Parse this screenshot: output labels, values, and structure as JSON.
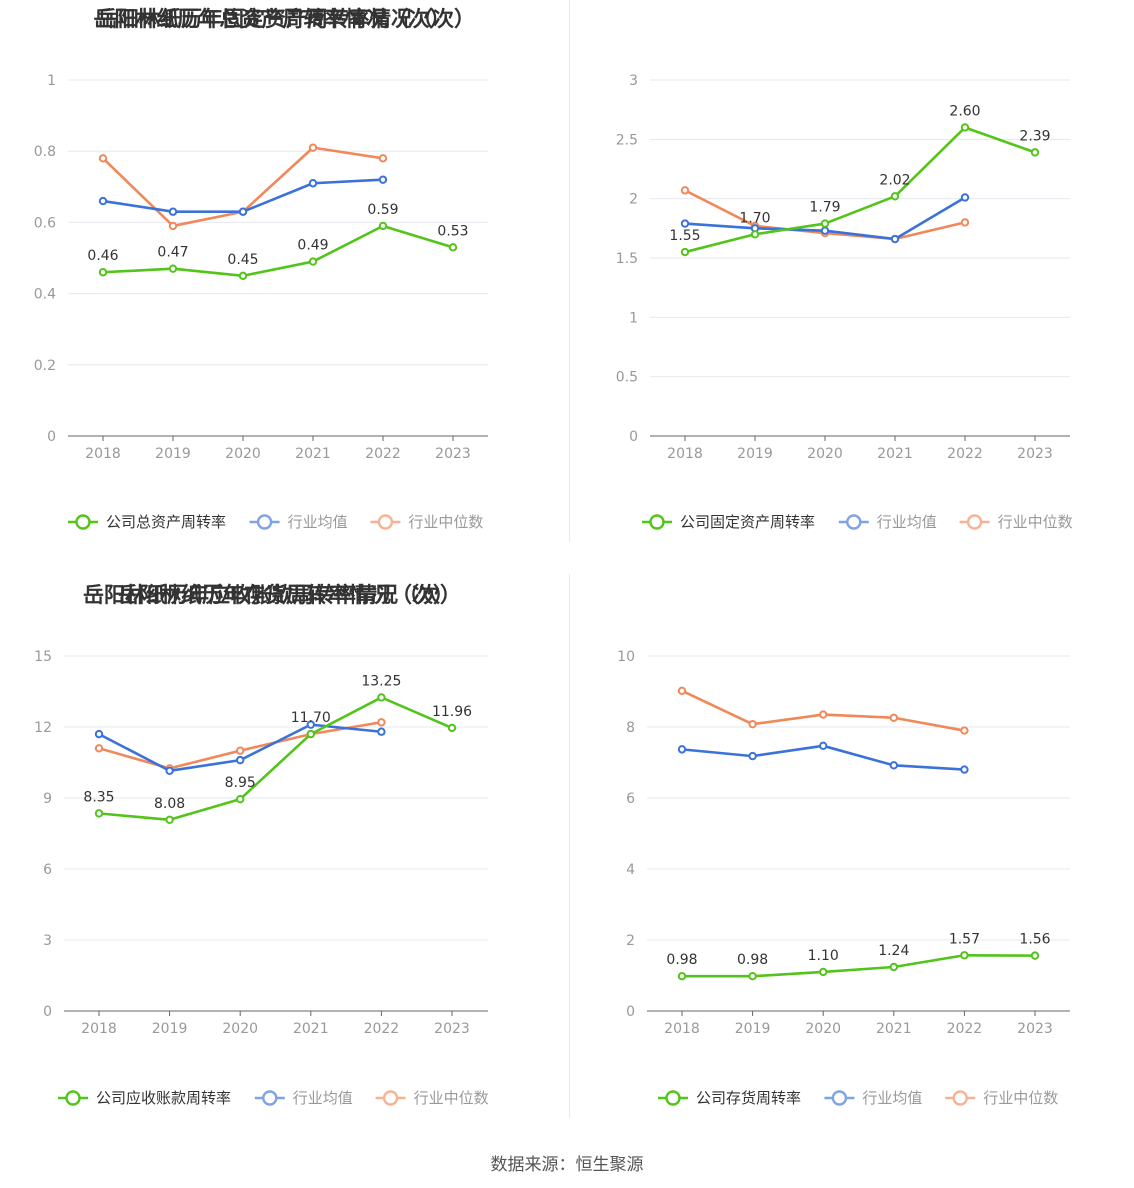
{
  "source_text": "数据来源：恒生聚源",
  "colors": {
    "company": "#52c41a",
    "avg": "#3b72d9",
    "median": "#f0885a"
  },
  "chart_data": [
    {
      "type": "line",
      "title": "岳阳林纸历年总资产周转率情况（次）",
      "categories": [
        "2018",
        "2019",
        "2020",
        "2021",
        "2022",
        "2023"
      ],
      "ylim": [
        0,
        1
      ],
      "yticks": [
        0,
        0.2,
        0.4,
        0.6,
        0.8,
        1
      ],
      "ytick_labels": [
        "0",
        "0.2",
        "0.4",
        "0.6",
        "0.8",
        "1"
      ],
      "series": [
        {
          "name": "公司总资产周转率",
          "key": "company",
          "values": [
            0.46,
            0.47,
            0.45,
            0.49,
            0.59,
            0.53
          ],
          "labels": [
            "0.46",
            "0.47",
            "0.45",
            "0.49",
            "0.59",
            "0.53"
          ]
        },
        {
          "name": "行业均值",
          "key": "avg",
          "values": [
            0.66,
            0.63,
            0.63,
            0.71,
            0.72,
            null
          ]
        },
        {
          "name": "行业中位数",
          "key": "median",
          "values": [
            0.78,
            0.59,
            0.63,
            0.81,
            0.78,
            null
          ]
        }
      ]
    },
    {
      "type": "line",
      "title": "岳阳林纸历年固定资产周转率情况（次）",
      "categories": [
        "2018",
        "2019",
        "2020",
        "2021",
        "2022",
        "2023"
      ],
      "ylim": [
        0,
        3
      ],
      "yticks": [
        0,
        0.5,
        1,
        1.5,
        2,
        2.5,
        3
      ],
      "ytick_labels": [
        "0",
        "0.5",
        "1",
        "1.5",
        "2",
        "2.5",
        "3"
      ],
      "series": [
        {
          "name": "公司固定资产周转率",
          "key": "company",
          "values": [
            1.55,
            1.7,
            1.79,
            2.02,
            2.6,
            2.39
          ],
          "labels": [
            "1.55",
            "1.70",
            "1.79",
            "2.02",
            "2.60",
            "2.39"
          ]
        },
        {
          "name": "行业均值",
          "key": "avg",
          "values": [
            1.79,
            1.75,
            1.73,
            1.66,
            2.01,
            null
          ]
        },
        {
          "name": "行业中位数",
          "key": "median",
          "values": [
            2.07,
            1.77,
            1.71,
            1.66,
            1.8,
            null
          ]
        }
      ]
    },
    {
      "type": "line",
      "title": "岳阳林纸历年应收账款周转率情况（次）",
      "categories": [
        "2018",
        "2019",
        "2020",
        "2021",
        "2022",
        "2023"
      ],
      "ylim": [
        0,
        15
      ],
      "yticks": [
        0,
        3,
        6,
        9,
        12,
        15
      ],
      "ytick_labels": [
        "0",
        "3",
        "6",
        "9",
        "12",
        "15"
      ],
      "series": [
        {
          "name": "公司应收账款周转率",
          "key": "company",
          "values": [
            8.35,
            8.08,
            8.95,
            11.7,
            13.25,
            11.96
          ],
          "labels": [
            "8.35",
            "8.08",
            "8.95",
            "11.70",
            "13.25",
            "11.96"
          ]
        },
        {
          "name": "行业均值",
          "key": "avg",
          "values": [
            11.7,
            10.15,
            10.6,
            12.1,
            11.8,
            null
          ]
        },
        {
          "name": "行业中位数",
          "key": "median",
          "values": [
            11.1,
            10.25,
            11.0,
            11.7,
            12.2,
            null
          ]
        }
      ]
    },
    {
      "type": "line",
      "title": "岳阳林纸历年存货周转率情况（次）",
      "categories": [
        "2018",
        "2019",
        "2020",
        "2021",
        "2022",
        "2023"
      ],
      "ylim": [
        0,
        10
      ],
      "yticks": [
        0,
        2,
        4,
        6,
        8,
        10
      ],
      "ytick_labels": [
        "0",
        "2",
        "4",
        "6",
        "8",
        "10"
      ],
      "series": [
        {
          "name": "公司存货周转率",
          "key": "company",
          "values": [
            0.98,
            0.98,
            1.1,
            1.24,
            1.57,
            1.56
          ],
          "labels": [
            "0.98",
            "0.98",
            "1.10",
            "1.24",
            "1.57",
            "1.56"
          ]
        },
        {
          "name": "行业均值",
          "key": "avg",
          "values": [
            7.37,
            7.18,
            7.47,
            6.92,
            6.8,
            null
          ]
        },
        {
          "name": "行业中位数",
          "key": "median",
          "values": [
            9.02,
            8.08,
            8.35,
            8.26,
            7.9,
            null
          ]
        }
      ]
    }
  ]
}
